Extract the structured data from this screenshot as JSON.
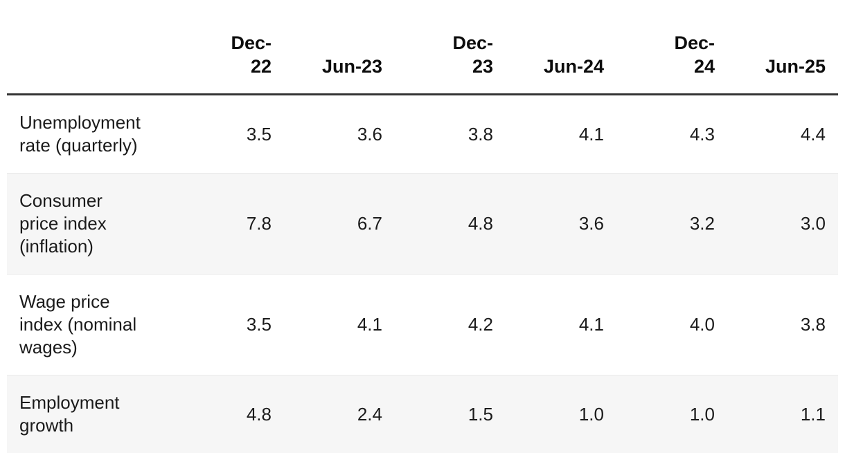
{
  "colors": {
    "background": "#ffffff",
    "zebra_row_bg": "#f6f6f6",
    "header_rule": "#333333",
    "row_divider": "#e9e9e9",
    "text": "#1b1b1b",
    "header_text": "#0d0d0d"
  },
  "table": {
    "header": {
      "corner_label": "",
      "columns": [
        {
          "label": "Dec-\n22"
        },
        {
          "label": "Jun-23"
        },
        {
          "label": "Dec-\n23"
        },
        {
          "label": "Jun-24"
        },
        {
          "label": "Dec-\n24"
        },
        {
          "label": "Jun-25"
        }
      ]
    },
    "rows": [
      {
        "label": "Unemployment\nrate (quarterly)",
        "values": [
          "3.5",
          "3.6",
          "3.8",
          "4.1",
          "4.3",
          "4.4"
        ]
      },
      {
        "label": "Consumer\nprice index\n(inflation)",
        "values": [
          "7.8",
          "6.7",
          "4.8",
          "3.6",
          "3.2",
          "3.0"
        ]
      },
      {
        "label": "Wage price\nindex (nominal\nwages)",
        "values": [
          "3.5",
          "4.1",
          "4.2",
          "4.1",
          "4.0",
          "3.8"
        ]
      },
      {
        "label": "Employment\ngrowth",
        "values": [
          "4.8",
          "2.4",
          "1.5",
          "1.0",
          "1.0",
          "1.1"
        ]
      }
    ]
  },
  "chart_data": {
    "type": "table",
    "title": "",
    "categories": [
      "Dec-22",
      "Jun-23",
      "Dec-23",
      "Jun-24",
      "Dec-24",
      "Jun-25"
    ],
    "series": [
      {
        "name": "Unemployment rate (quarterly)",
        "values": [
          3.5,
          3.6,
          3.8,
          4.1,
          4.3,
          4.4
        ]
      },
      {
        "name": "Consumer price index (inflation)",
        "values": [
          7.8,
          6.7,
          4.8,
          3.6,
          3.2,
          3.0
        ]
      },
      {
        "name": "Wage price index (nominal wages)",
        "values": [
          3.5,
          4.1,
          4.2,
          4.1,
          4.0,
          3.8
        ]
      },
      {
        "name": "Employment growth",
        "values": [
          4.8,
          2.4,
          1.5,
          1.0,
          1.0,
          1.1
        ]
      }
    ],
    "layout": {
      "zebra_striping": true,
      "value_alignment": "right",
      "header_position": "top"
    }
  }
}
